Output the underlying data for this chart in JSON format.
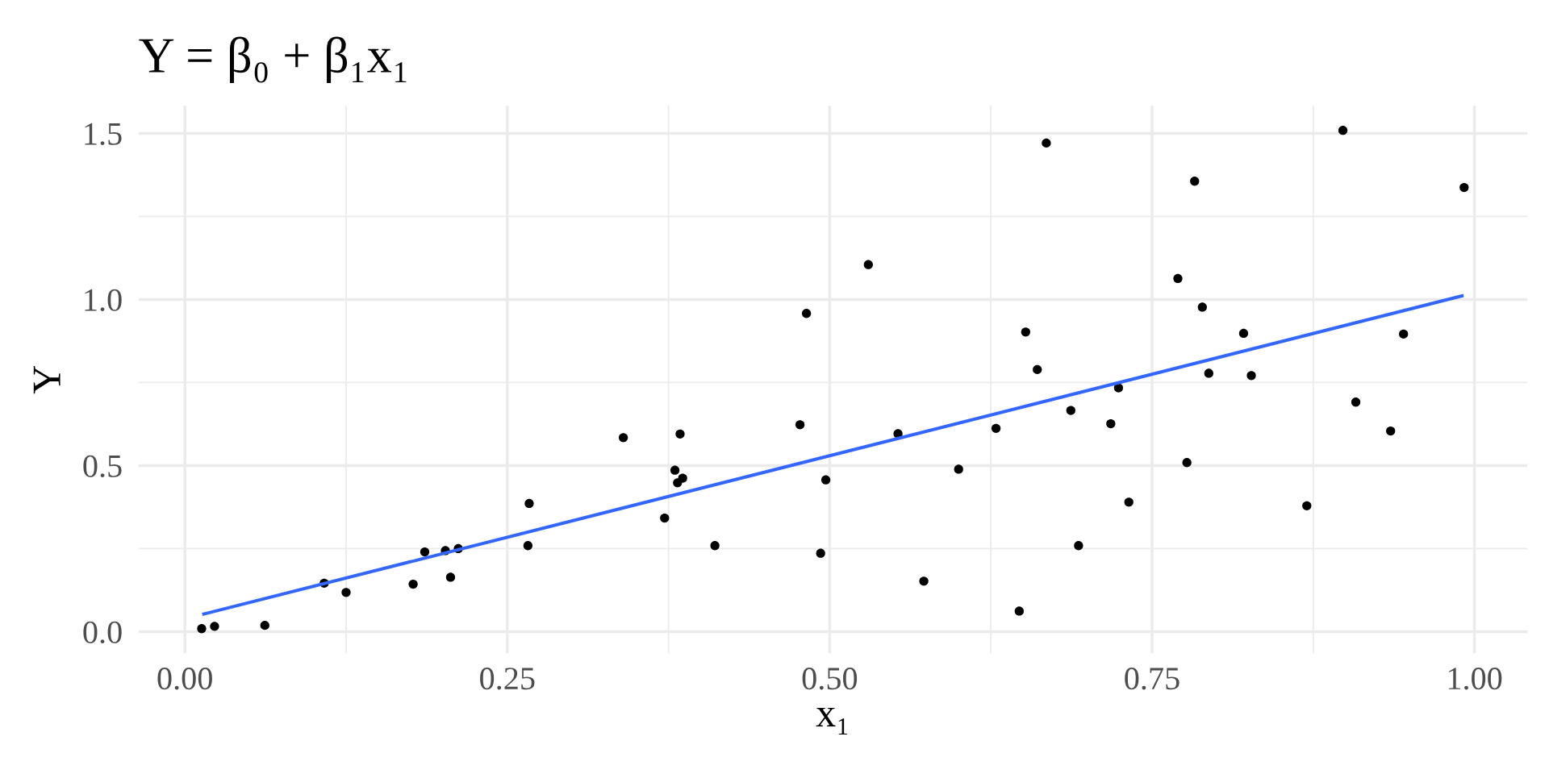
{
  "chart_data": {
    "type": "scatter",
    "title": "Y = β₀ + β₁x₁",
    "xlabel": "x₁",
    "ylabel": "Y",
    "series": [
      {
        "color": "#000000",
        "marker": "circle",
        "x": [
          0.013,
          0.023,
          0.062,
          0.108,
          0.125,
          0.177,
          0.186,
          0.202,
          0.206,
          0.212,
          0.266,
          0.267,
          0.34,
          0.372,
          0.38,
          0.382,
          0.384,
          0.386,
          0.411,
          0.477,
          0.482,
          0.493,
          0.497,
          0.53,
          0.553,
          0.573,
          0.6,
          0.629,
          0.647,
          0.652,
          0.661,
          0.668,
          0.687,
          0.693,
          0.718,
          0.724,
          0.732,
          0.77,
          0.777,
          0.783,
          0.789,
          0.794,
          0.821,
          0.827,
          0.87,
          0.898,
          0.908,
          0.935,
          0.945,
          0.992
        ],
        "values": [
          0.009,
          0.016,
          0.019,
          0.146,
          0.118,
          0.143,
          0.24,
          0.244,
          0.164,
          0.25,
          0.259,
          0.386,
          0.584,
          0.342,
          0.486,
          0.448,
          0.595,
          0.462,
          0.259,
          0.623,
          0.958,
          0.236,
          0.457,
          1.105,
          0.596,
          0.152,
          0.489,
          0.612,
          0.062,
          0.902,
          0.789,
          1.471,
          0.666,
          0.259,
          0.626,
          0.734,
          0.39,
          1.063,
          0.509,
          1.356,
          0.977,
          0.778,
          0.898,
          0.771,
          0.379,
          1.509,
          0.691,
          0.604,
          0.896,
          1.337
        ]
      },
      {
        "type": "line",
        "color": "#3366ff",
        "line_style": "solid",
        "x": [
          0.0135,
          0.9916
        ],
        "values": [
          0.052,
          1.012
        ]
      }
    ],
    "xlim": [
      -0.036,
      1.041
    ],
    "ylim": [
      -0.065,
      1.583
    ],
    "xticks": [
      {
        "value": 0,
        "label": "0.00"
      },
      {
        "value": 0.25,
        "label": "0.25"
      },
      {
        "value": 0.5,
        "label": "0.50"
      },
      {
        "value": 0.75,
        "label": "0.75"
      },
      {
        "value": 1,
        "label": "1.00"
      }
    ],
    "yticks": [
      {
        "value": 0,
        "label": "0.0"
      },
      {
        "value": 0.5,
        "label": "0.5"
      },
      {
        "value": 1,
        "label": "1.0"
      },
      {
        "value": 1.5,
        "label": "1.5"
      }
    ],
    "grid": true
  }
}
